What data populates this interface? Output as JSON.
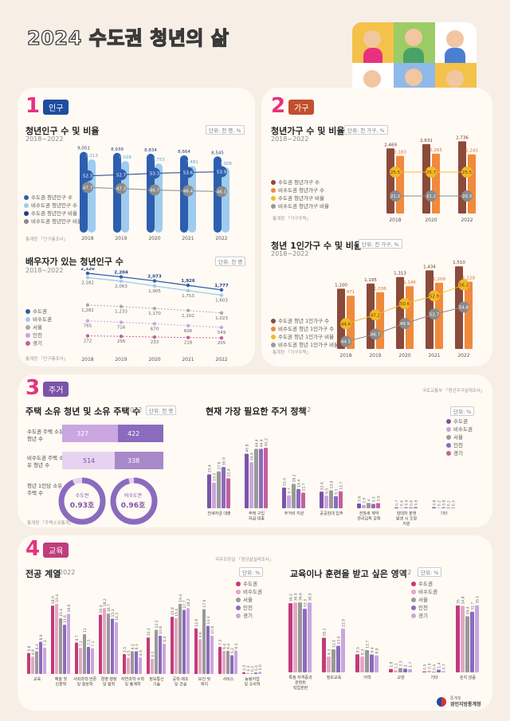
{
  "title": "2024 수도권 청년의 삶",
  "footer": {
    "org_small": "통계청",
    "org": "경인지방통계청"
  },
  "sections": {
    "s1": {
      "num": "1",
      "label": "인구"
    },
    "s2": {
      "num": "2",
      "label": "가구"
    },
    "s3": {
      "num": "3",
      "label": "주거"
    },
    "s4": {
      "num": "4",
      "label": "교육"
    }
  },
  "colors": {
    "navy": "#2d5fae",
    "lightblue": "#9ecbee",
    "pink": "#e8317e",
    "purple": "#7a54a8",
    "brown": "#8b4a3a",
    "orange": "#f08a3c",
    "gold": "#f3b92b",
    "gray": "#999999",
    "lavender": "#c9a6df",
    "magenta": "#c3609e",
    "violet": "#8a6bbd"
  },
  "chart_data": [
    {
      "type": "bar",
      "title": "청년인구 수 및 비율",
      "subtitle": "2018~2022",
      "unit": "단위: 천 명, %",
      "source": "통계청 「인구총조사」",
      "categories": [
        "2018",
        "2019",
        "2020",
        "2021",
        "2022"
      ],
      "series": [
        {
          "name": "수도권 청년인구 수",
          "values": [
            9051,
            8939,
            8834,
            8664,
            8545
          ]
        },
        {
          "name": "비수도권 청년인구 수",
          "values": [
            8213,
            8028,
            7753,
            7481,
            7308
          ]
        },
        {
          "name": "수도권 청년인구 비율",
          "values": [
            52.3,
            52.7,
            53.3,
            53.6,
            53.9
          ]
        },
        {
          "name": "비수도권 청년인구 비율",
          "values": [
            47.7,
            47.3,
            46.7,
            46.4,
            46.1
          ]
        }
      ]
    },
    {
      "type": "line",
      "title": "배우자가 있는 청년인구 수",
      "subtitle": "2018~2022",
      "unit": "단위: 천 명",
      "source": "통계청 「인구총조사」",
      "categories": [
        "2018",
        "2019",
        "2020",
        "2021",
        "2022"
      ],
      "series": [
        {
          "name": "수도권",
          "values": [
            2320,
            2204,
            2073,
            1926,
            1777
          ]
        },
        {
          "name": "비수도권",
          "values": [
            2182,
            2063,
            1905,
            1753,
            1603
          ]
        },
        {
          "name": "서울",
          "values": [
            1282,
            1233,
            1170,
            1102,
            1023
          ]
        },
        {
          "name": "인천",
          "values": [
            765,
            716,
            670,
            606,
            549
          ]
        },
        {
          "name": "경기",
          "values": [
            272,
            256,
            233,
            218,
            205
          ]
        }
      ]
    },
    {
      "type": "bar",
      "title": "청년가구 수 및 비율",
      "subtitle": "2018~2022",
      "unit": "단위: 천 가구, %",
      "source": "통계청 「가구주택」",
      "categories": [
        "2018",
        "2019",
        "2020",
        "2021",
        "2022"
      ],
      "series": [
        {
          "name": "수도권 청년가구 수",
          "values": [
            2469,
            2550,
            2631,
            2690,
            2736
          ]
        },
        {
          "name": "비수도권 청년가구 수",
          "values": [
            2183,
            2220,
            2265,
            2250,
            2243
          ]
        },
        {
          "name": "수도권 청년가구 비율",
          "values": [
            25.5,
            25.6,
            25.7,
            25.6,
            25.5
          ]
        },
        {
          "name": "비수도권 청년가구 비율",
          "values": [
            21.2,
            21.2,
            21.2,
            21.0,
            20.3
          ]
        }
      ]
    },
    {
      "type": "bar",
      "title": "청년 1인가구 수 및 비율",
      "subtitle": "2018~2022",
      "unit": "단위: 천 가구, %",
      "source": "통계청 「가구주택」",
      "categories": [
        "2018",
        "2019",
        "2020",
        "2021",
        "2022"
      ],
      "series": [
        {
          "name": "수도권 청년 1인가구 수",
          "values": [
            1100,
            1195,
            1313,
            1434,
            1510
          ]
        },
        {
          "name": "비수도권 청년 1인가구 수",
          "values": [
            971,
            1036,
            1146,
            1209,
            1229
          ]
        },
        {
          "name": "수도권 청년 1인가구 비율",
          "values": [
            44.6,
            47.2,
            50.6,
            52.9,
            56.2
          ]
        },
        {
          "name": "비수도권 청년 1인가구 비율",
          "values": [
            44.5,
            46.7,
            49.9,
            52.7,
            54.8
          ]
        }
      ]
    },
    {
      "type": "bar",
      "title": "현재 가장 필요한 주거 정책",
      "subtitle": "2022",
      "unit": "단위: %",
      "source": "국토교통부 「청년주거실태조사」",
      "categories": [
        "전세자금 대출",
        "주택 구입 자금 대출",
        "주거비 지원",
        "공공임대 입주",
        "전월세 계약 관리감독 강화",
        "임대차 분쟁 발생 시 조정 지원",
        "기타"
      ],
      "series": [
        {
          "name": "수도권",
          "values": [
            25.4,
            40.8,
            15.5,
            12.4,
            3.6,
            0.7,
            0.8
          ]
        },
        {
          "name": "비수도권",
          "values": [
            19.2,
            34.4,
            9.7,
            9.5,
            2.5,
            0.4,
            0.2
          ]
        },
        {
          "name": "서울",
          "values": [
            27.6,
            44.4,
            18.2,
            13.4,
            4.0,
            0.9,
            0.8
          ]
        },
        {
          "name": "인천",
          "values": [
            30.9,
            44.4,
            14.4,
            9.1,
            3.3,
            0.6,
            0.2
          ]
        },
        {
          "name": "경기",
          "values": [
            22.4,
            45.2,
            11.7,
            12.7,
            3.9,
            0.9,
            0.3
          ]
        }
      ]
    },
    {
      "type": "bar",
      "title": "전공 계열",
      "subtitle": "2022",
      "unit": "단위: %",
      "source": "국무조정실 「청년삶실태조사」",
      "categories": [
        "교육",
        "예술 및 인문학",
        "사회과학·언론 및 정보학",
        "경영·행정 및 법학",
        "자연과학·수학 및 통계학",
        "정보통신 기술",
        "공학·제조 및 건설",
        "보건 및 복지",
        "서비스",
        "농림어업 및 수의학"
      ],
      "series": [
        {
          "name": "수도권",
          "values": [
            5.8,
            18.9,
            8.7,
            16.4,
            5.5,
            10.1,
            15.8,
            12.6,
            7.5,
            0.5
          ]
        },
        {
          "name": "비수도권",
          "values": [
            4.8,
            19.4,
            7.2,
            18.2,
            4.5,
            4.2,
            15.4,
            9.6,
            6.4,
            0.3
          ]
        },
        {
          "name": "서울",
          "values": [
            6.3,
            15.4,
            11.0,
            16.7,
            6.3,
            12.2,
            19.4,
            17.9,
            6.4,
            0.2
          ]
        },
        {
          "name": "인천",
          "values": [
            8.9,
            13.6,
            7.5,
            15.3,
            6.3,
            10.6,
            17.7,
            13.3,
            5.2,
            0.4
          ]
        },
        {
          "name": "경기",
          "values": [
            7.3,
            16.6,
            7.1,
            14.3,
            4.6,
            8.4,
            18.2,
            10.6,
            6.5,
            0.6
          ]
        }
      ]
    },
    {
      "type": "bar",
      "title": "교육이나 훈련을 받고 싶은 영역",
      "subtitle": "2022",
      "unit": "단위: %",
      "categories": [
        "특정 자격증과 관련된 직업훈련",
        "정보교육",
        "어학",
        "교양",
        "기타",
        "원치 않음"
      ],
      "series": [
        {
          "name": "수도권",
          "values": [
            36.2,
            18.1,
            9.5,
            1.8,
            0.5,
            35.0
          ]
        },
        {
          "name": "비수도권",
          "values": [
            36.5,
            8.3,
            8.3,
            1.1,
            0.9,
            34.8
          ]
        },
        {
          "name": "서울",
          "values": [
            36.6,
            12.1,
            11.7,
            2.3,
            0.4,
            29.4
          ]
        },
        {
          "name": "인천",
          "values": [
            33.3,
            13.9,
            9.4,
            2.0,
            1.4,
            31.7
          ]
        },
        {
          "name": "경기",
          "values": [
            36.5,
            22.9,
            8.9,
            1.7,
            0.7,
            35.1
          ]
        }
      ]
    }
  ],
  "housing": {
    "title": "주택 소유 청년 및 소유 주택 수",
    "year": "2022",
    "unit": "단위: 천 명",
    "source": "통계청 「주택소유통계」",
    "owners_label": "수도권 주택 소유 청년 수",
    "owners_value_a": "327",
    "owners_value_b": "422",
    "homes_label": "비수도권 주택 소유 청년 수",
    "homes_value_a": "514",
    "homes_value_b": "338",
    "ratio_label": "청년 1인당 소유 주택 수",
    "ratio_a_label": "수도권",
    "ratio_a": "0.93호",
    "ratio_b_label": "비수도권",
    "ratio_b": "0.96호"
  }
}
